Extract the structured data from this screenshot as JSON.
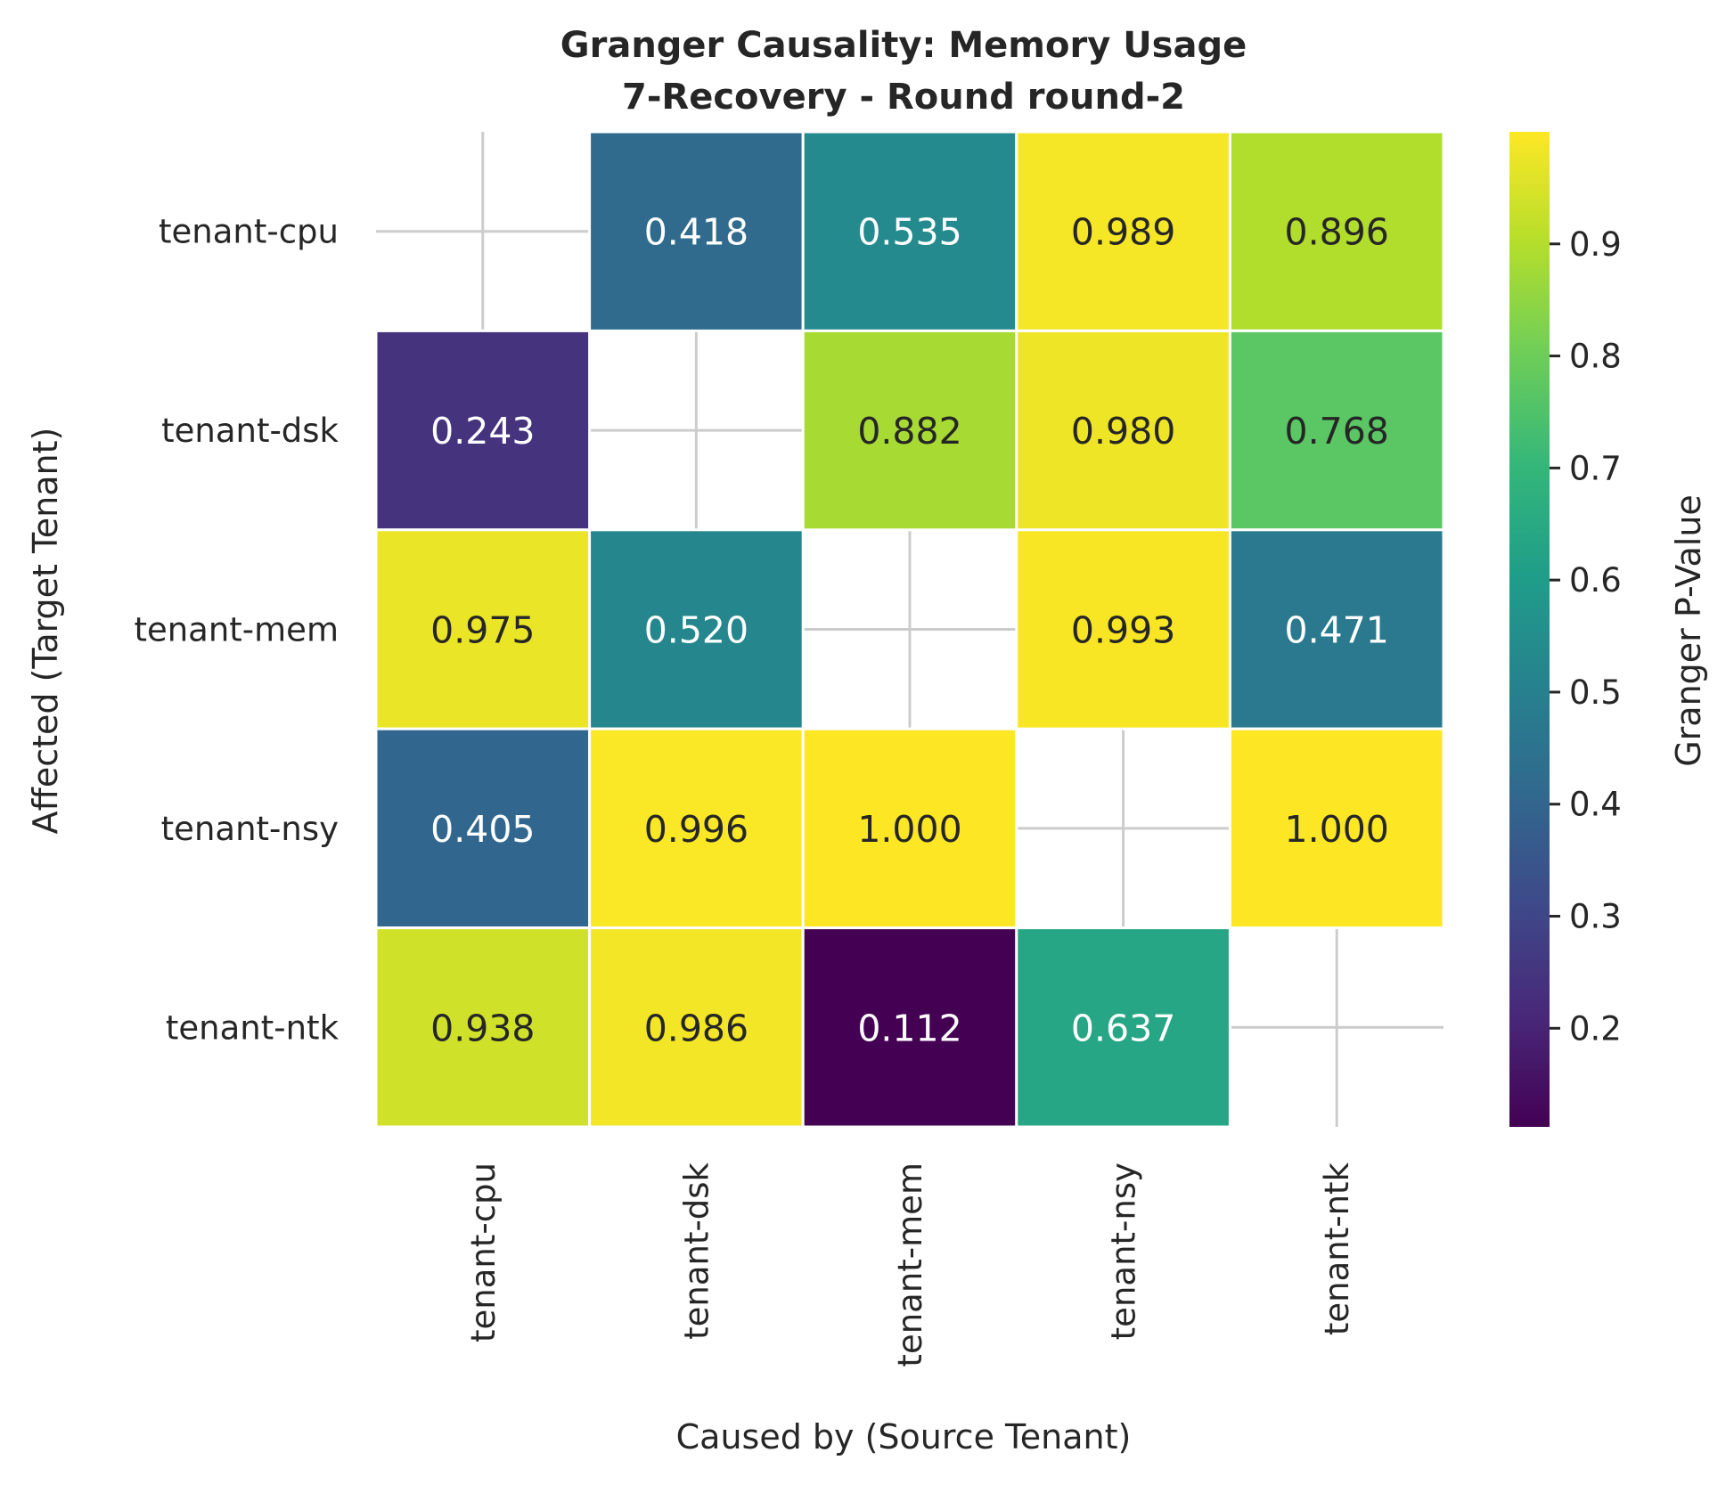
{
  "chart_data": {
    "type": "heatmap",
    "title_lines": [
      "Granger Causality: Memory Usage",
      "7-Recovery - Round round-2"
    ],
    "xlabel": "Caused by (Source Tenant)",
    "ylabel": "Affected (Target Tenant)",
    "x_categories": [
      "tenant-cpu",
      "tenant-dsk",
      "tenant-mem",
      "tenant-nsy",
      "tenant-ntk"
    ],
    "y_categories": [
      "tenant-cpu",
      "tenant-dsk",
      "tenant-mem",
      "tenant-nsy",
      "tenant-ntk"
    ],
    "values": [
      [
        null,
        0.418,
        0.535,
        0.989,
        0.896
      ],
      [
        0.243,
        null,
        0.882,
        0.98,
        0.768
      ],
      [
        0.975,
        0.52,
        null,
        0.993,
        0.471
      ],
      [
        0.405,
        0.996,
        1.0,
        null,
        1.0
      ],
      [
        0.938,
        0.986,
        0.112,
        0.637,
        null
      ]
    ],
    "value_format": "0.000",
    "colormap": "viridis",
    "colorbar": {
      "label": "Granger P-Value",
      "range": [
        0.112,
        1.0
      ],
      "ticks": [
        0.2,
        0.3,
        0.4,
        0.5,
        0.6,
        0.7,
        0.8,
        0.9
      ],
      "tick_labels": [
        "0.2",
        "0.3",
        "0.4",
        "0.5",
        "0.6",
        "0.7",
        "0.8",
        "0.9"
      ]
    },
    "grid": true,
    "colors": {
      "background": "#ffffff",
      "grid_line": "#cccccc",
      "cell_border": "#ffffff",
      "text_dark": "#262626",
      "text_light": "#ffffff"
    }
  }
}
